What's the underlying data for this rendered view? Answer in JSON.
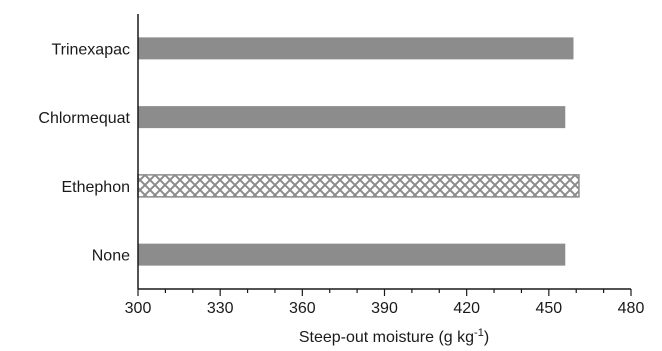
{
  "chart_data": {
    "type": "bar",
    "orientation": "horizontal",
    "categories": [
      "Trinexapac",
      "Chlormequat",
      "Ethephon",
      "None"
    ],
    "values": [
      459,
      456,
      461,
      456
    ],
    "bar_styles": [
      "solid",
      "solid",
      "crosshatch",
      "solid"
    ],
    "xlabel": "Steep-out moisture (g kg",
    "xlabel_superscript": "-1",
    "xlabel_suffix": ")",
    "xlim": [
      300,
      480
    ],
    "xticks": [
      300,
      330,
      360,
      390,
      420,
      450,
      480
    ],
    "minor_tick_step": 10,
    "grid": false,
    "legend": "none",
    "colors": {
      "bar_fill": "#8c8c8c",
      "hatch_fill": "#ffffff",
      "hatch_stroke": "#8c8c8c",
      "axis": "#1a1a1a"
    }
  }
}
